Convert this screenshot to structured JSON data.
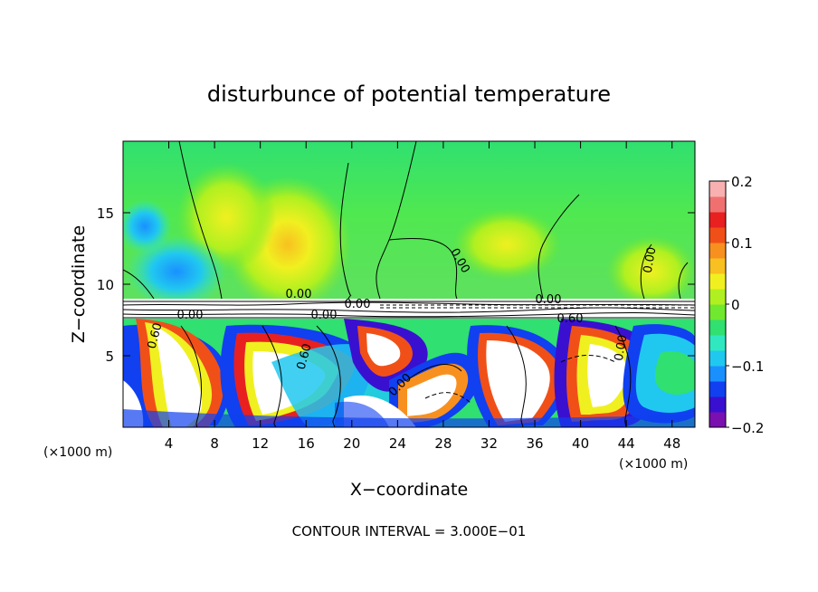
{
  "chart_data": {
    "type": "heatmap",
    "title": "disturbunce of potential temperature",
    "xlabel": "X−coordinate",
    "ylabel": "Z−coordinate",
    "x_unit_label": "(×1000 m)",
    "y_unit_label": "(×1000 m)",
    "xlim": [
      0,
      50
    ],
    "ylim": [
      0,
      20
    ],
    "xticks": [
      4,
      8,
      12,
      16,
      20,
      24,
      28,
      32,
      36,
      40,
      44,
      48
    ],
    "yticks": [
      5,
      10,
      15
    ],
    "xtick_labels": [
      "4",
      "8",
      "12",
      "16",
      "20",
      "24",
      "28",
      "32",
      "36",
      "40",
      "44",
      "48"
    ],
    "ytick_labels": [
      "5",
      "10",
      "15"
    ],
    "colorbar": {
      "min": -0.2,
      "max": 0.2,
      "ticks": [
        0.2,
        0.1,
        0,
        -0.1,
        -0.2
      ],
      "tick_labels": [
        "0.2",
        "0.1",
        "0",
        "−0.1",
        "−0.2"
      ],
      "colors": [
        "#7a10b0",
        "#3a10d0",
        "#1040f0",
        "#1a90ff",
        "#20c8f0",
        "#30e8c0",
        "#30e070",
        "#70e830",
        "#b0f020",
        "#f0f020",
        "#f8c020",
        "#f89020",
        "#f05018",
        "#e82020",
        "#f07070",
        "#f8b0b0"
      ]
    },
    "contour_labels": [
      "0.00",
      "0.00",
      "0.00",
      "0.00",
      "0.60",
      "0.60",
      "0.60",
      "0.00",
      "0.00",
      "0.00",
      "0.00",
      "0.00"
    ],
    "contour_interval_text": "CONTOUR INTERVAL = 3.000E−01"
  }
}
